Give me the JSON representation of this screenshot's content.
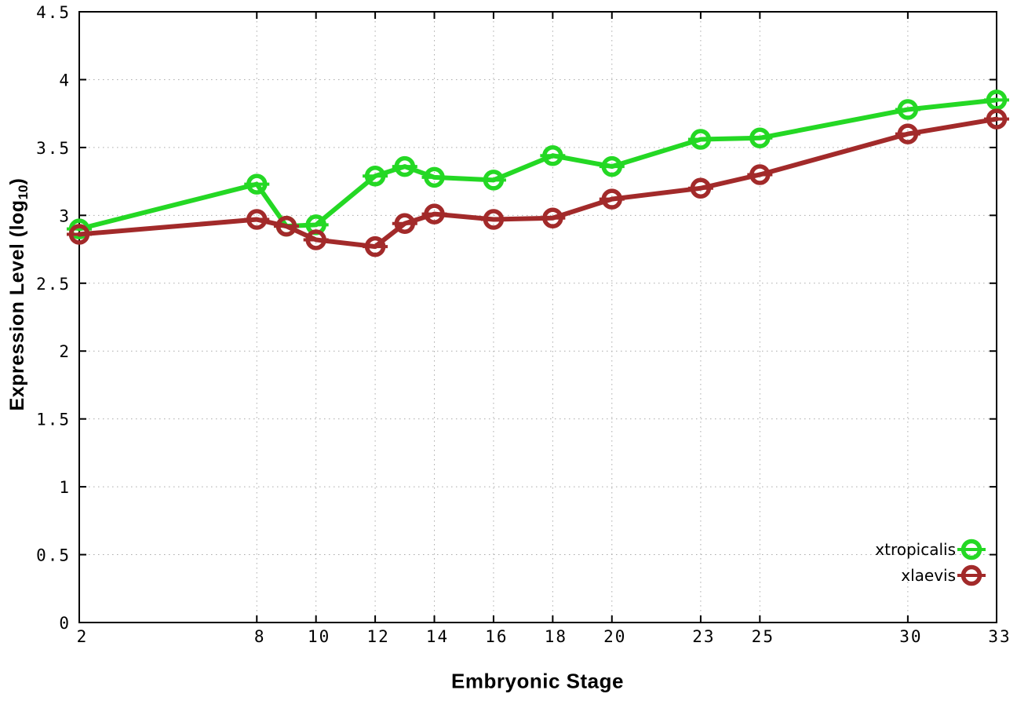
{
  "chart_data": {
    "type": "line",
    "title": "",
    "xlabel": "Embryonic Stage",
    "ylabel": "Expression Level (log10)",
    "ylabel_parts": {
      "main": "Expression Level (log",
      "sub": "10",
      "end": ")"
    },
    "xlim": [
      2,
      33
    ],
    "ylim": [
      0,
      4.5
    ],
    "x_ticks": [
      2,
      8,
      10,
      12,
      14,
      16,
      18,
      20,
      23,
      25,
      30,
      33
    ],
    "y_ticks": [
      0,
      0.5,
      1,
      1.5,
      2,
      2.5,
      3,
      3.5,
      4,
      4.5
    ],
    "grid": true,
    "legend_position": "inside-bottom-right",
    "axis_color": "#000000",
    "grid_color": "#aaaaaa",
    "x": [
      2,
      8,
      9,
      10,
      12,
      13,
      14,
      16,
      18,
      20,
      23,
      25,
      30,
      33
    ],
    "series": [
      {
        "name": "xtropicalis",
        "color": "#24d824",
        "values": [
          2.9,
          3.23,
          2.92,
          2.93,
          3.29,
          3.36,
          3.28,
          3.26,
          3.44,
          3.36,
          3.56,
          3.57,
          3.78,
          3.85
        ]
      },
      {
        "name": "xlaevis",
        "color": "#a22a2a",
        "values": [
          2.86,
          2.97,
          2.92,
          2.82,
          2.77,
          2.94,
          3.01,
          2.97,
          2.98,
          3.12,
          3.2,
          3.3,
          3.6,
          3.71
        ]
      }
    ]
  }
}
